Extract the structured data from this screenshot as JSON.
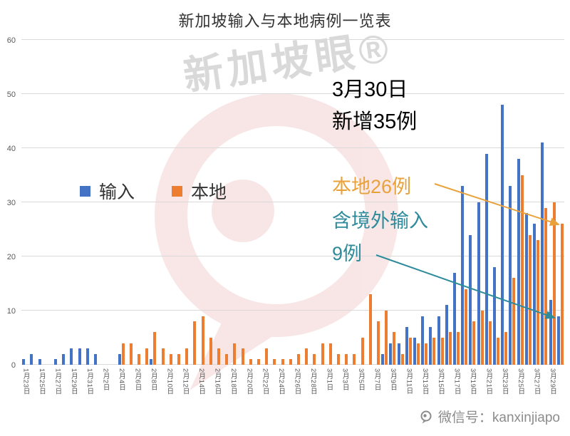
{
  "title": "新加坡输入与本地病例一览表",
  "legend": {
    "imported": "输入",
    "local": "本地"
  },
  "annotations": {
    "date_line1": "3月30日",
    "date_line2": "新增35例",
    "local_note": "本地26例",
    "imported_note_line1": "含境外输入",
    "imported_note_line2": "9例"
  },
  "watermark": {
    "diagonal_text": "新加坡眼®"
  },
  "footer": {
    "wechat": "微信号：kanxinjiapo"
  },
  "colors": {
    "imported": "#4472C4",
    "local": "#ED7D31",
    "annotation_black": "#000000",
    "annotation_orange": "#E9A23B",
    "annotation_teal": "#2E8B9B",
    "gridline": "#D9D9D9",
    "axis_text": "#595959",
    "watermark": "#D96B6B"
  },
  "chart_data": {
    "type": "bar",
    "title": "新加坡输入与本地病例一览表",
    "categories": [
      "1月23日",
      "1月24日",
      "1月25日",
      "1月26日",
      "1月27日",
      "1月28日",
      "1月29日",
      "1月30日",
      "1月31日",
      "2月1日",
      "2月2日",
      "2月3日",
      "2月4日",
      "2月5日",
      "2月6日",
      "2月7日",
      "2月8日",
      "2月9日",
      "2月10日",
      "2月11日",
      "2月12日",
      "2月13日",
      "2月14日",
      "2月15日",
      "2月16日",
      "2月17日",
      "2月18日",
      "2月19日",
      "2月20日",
      "2月21日",
      "2月22日",
      "2月23日",
      "2月24日",
      "2月25日",
      "2月26日",
      "2月27日",
      "2月28日",
      "2月29日",
      "3月1日",
      "3月2日",
      "3月3日",
      "3月4日",
      "3月5日",
      "3月6日",
      "3月7日",
      "3月8日",
      "3月9日",
      "3月10日",
      "3月11日",
      "3月12日",
      "3月13日",
      "3月14日",
      "3月15日",
      "3月16日",
      "3月17日",
      "3月18日",
      "3月19日",
      "3月20日",
      "3月21日",
      "3月22日",
      "3月23日",
      "3月24日",
      "3月25日",
      "3月26日",
      "3月27日",
      "3月28日",
      "3月29日",
      "3月30日"
    ],
    "series": [
      {
        "name": "输入",
        "color": "#4472C4",
        "values": [
          1,
          2,
          1,
          0,
          1,
          2,
          3,
          3,
          3,
          2,
          0,
          0,
          2,
          0,
          0,
          0,
          1,
          0,
          0,
          0,
          0,
          0,
          0,
          0,
          0,
          0,
          0,
          0,
          0,
          0,
          0,
          0,
          0,
          0,
          0,
          0,
          0,
          0,
          0,
          0,
          0,
          0,
          0,
          0,
          0,
          2,
          4,
          4,
          7,
          5,
          9,
          7,
          9,
          11,
          17,
          33,
          24,
          30,
          39,
          18,
          48,
          33,
          38,
          28,
          26,
          41,
          12,
          9
        ]
      },
      {
        "name": "本地",
        "color": "#ED7D31",
        "values": [
          0,
          0,
          0,
          0,
          0,
          0,
          0,
          0,
          0,
          0,
          0,
          0,
          4,
          4,
          2,
          3,
          6,
          3,
          2,
          2,
          3,
          8,
          9,
          5,
          3,
          2,
          4,
          3,
          1,
          1,
          3,
          1,
          1,
          1,
          2,
          3,
          2,
          4,
          4,
          2,
          2,
          2,
          5,
          13,
          8,
          10,
          6,
          2,
          5,
          4,
          4,
          5,
          5,
          6,
          6,
          14,
          8,
          10,
          8,
          5,
          6,
          16,
          35,
          24,
          23,
          29,
          30,
          26
        ]
      }
    ],
    "xlabel": "",
    "ylabel": "",
    "ylim": [
      0,
      60
    ],
    "yticks": [
      0,
      10,
      20,
      30,
      40,
      50,
      60
    ],
    "x_label_every": 2,
    "grid": true,
    "legend_position": "middle-left"
  }
}
